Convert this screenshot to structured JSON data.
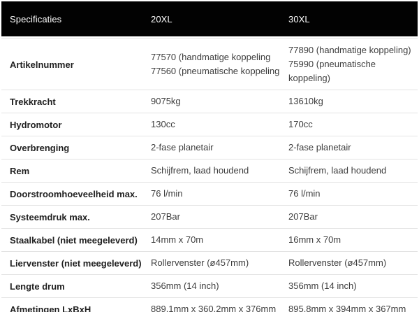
{
  "colors": {
    "header_bg": "#020202",
    "header_text": "#ffffff",
    "label_text": "#212121",
    "value_text": "#3d3d3d",
    "divider": "#e3e3e3"
  },
  "header": {
    "columns": [
      "Specificaties",
      "20XL",
      "30XL"
    ]
  },
  "rows": [
    {
      "label": "Artikelnummer",
      "xl20": [
        "77570 (handmatige koppeling",
        "77560 (pneumatische koppeling"
      ],
      "xl30": [
        "77890 (handmatige koppeling)",
        "75990 (pneumatische koppeling)"
      ]
    },
    {
      "label": "Trekkracht",
      "xl20": "9075kg",
      "xl30": "13610kg"
    },
    {
      "label": "Hydromotor",
      "xl20": "130cc",
      "xl30": "170cc"
    },
    {
      "label": "Overbrenging",
      "xl20": "2-fase planetair",
      "xl30": "2-fase planetair"
    },
    {
      "label": "Rem",
      "xl20": "Schijfrem, laad houdend",
      "xl30": "Schijfrem, laad houdend"
    },
    {
      "label": "Doorstroomhoeveelheid max.",
      "xl20": "76 l/min",
      "xl30": "76 l/min"
    },
    {
      "label": "Systeemdruk max.",
      "xl20": "207Bar",
      "xl30": "207Bar"
    },
    {
      "label": "Staalkabel (niet meegeleverd)",
      "xl20": "14mm x 70m",
      "xl30": "16mm x 70m"
    },
    {
      "label": "Liervenster (niet meegeleverd)",
      "xl20": "Rollervenster (ø457mm)",
      "xl30": "Rollervenster (ø457mm)"
    },
    {
      "label": "Lengte drum",
      "xl20": "356mm (14 inch)",
      "xl30": "356mm (14 inch)"
    },
    {
      "label": "Afmetingen LxBxH",
      "xl20": "889.1mm x 360.2mm x 376mm",
      "xl30": "895.8mm x 394mm x 367mm"
    }
  ]
}
